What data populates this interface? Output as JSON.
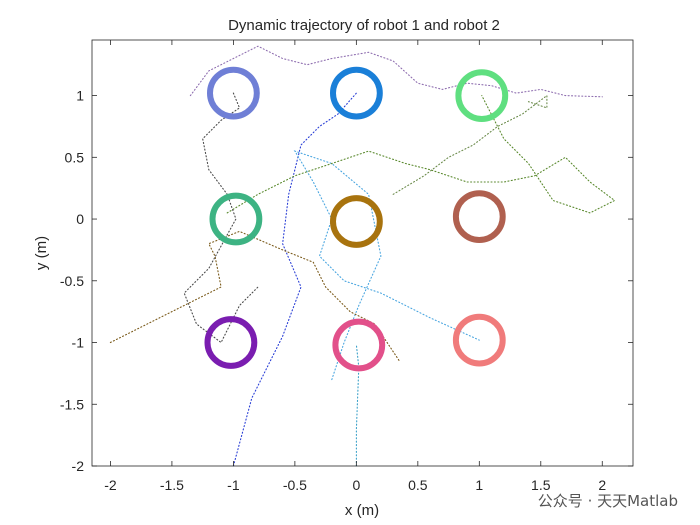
{
  "chart_data": {
    "type": "scatter",
    "title": "Dynamic trajectory of robot 1 and robot 2",
    "xlabel": "x (m)",
    "ylabel": "y (m)",
    "xlim": [
      -2.15,
      2.25
    ],
    "ylim": [
      -2,
      1.45
    ],
    "xticks": [
      -2,
      -1.5,
      -1,
      -0.5,
      0,
      0.5,
      1,
      1.5,
      2
    ],
    "xtick_labels": [
      "-2",
      "-1.5",
      "-1",
      "-0.5",
      "0",
      "0.5",
      "1",
      "1.5",
      "2"
    ],
    "yticks": [
      -2,
      -1.5,
      -1,
      -0.5,
      0,
      0.5,
      1
    ],
    "ytick_labels": [
      "-2",
      "-1.5",
      "-1",
      "-0.5",
      "0",
      "0.5",
      "1"
    ],
    "grid": false,
    "rings": [
      {
        "x": -1.0,
        "y": 1.02,
        "r": 0.19,
        "color": "#6f7fd6"
      },
      {
        "x": 0.0,
        "y": 1.02,
        "r": 0.19,
        "color": "#1a7fd8"
      },
      {
        "x": 1.02,
        "y": 1.0,
        "r": 0.19,
        "color": "#5fdf80"
      },
      {
        "x": -0.98,
        "y": 0.0,
        "r": 0.19,
        "color": "#3db383"
      },
      {
        "x": 0.0,
        "y": -0.02,
        "r": 0.19,
        "color": "#a8730e"
      },
      {
        "x": 1.0,
        "y": 0.02,
        "r": 0.19,
        "color": "#b0604f"
      },
      {
        "x": -1.02,
        "y": -1.0,
        "r": 0.19,
        "color": "#7a1db0"
      },
      {
        "x": 0.02,
        "y": -1.02,
        "r": 0.19,
        "color": "#e2508a"
      },
      {
        "x": 1.0,
        "y": -0.98,
        "r": 0.19,
        "color": "#f07b7b"
      }
    ],
    "trajectories": [
      {
        "color": "#2a3fd6",
        "points": [
          [
            -1.0,
            -2.0
          ],
          [
            -0.85,
            -1.45
          ],
          [
            -0.6,
            -0.95
          ],
          [
            -0.45,
            -0.55
          ],
          [
            -0.6,
            -0.2
          ],
          [
            -0.55,
            0.2
          ],
          [
            -0.45,
            0.6
          ],
          [
            -0.3,
            0.75
          ],
          [
            -0.15,
            0.85
          ],
          [
            0.0,
            1.02
          ]
        ]
      },
      {
        "color": "#3aa0c8",
        "points": [
          [
            0.0,
            -2.0
          ],
          [
            0.0,
            -1.7
          ],
          [
            0.02,
            -1.2
          ],
          [
            0.0,
            -1.02
          ]
        ]
      },
      {
        "color": "#4aa6e0",
        "points": [
          [
            -0.2,
            -1.3
          ],
          [
            -0.1,
            -1.0
          ],
          [
            0.02,
            -0.7
          ],
          [
            0.2,
            -0.3
          ],
          [
            0.1,
            0.2
          ],
          [
            -0.2,
            0.45
          ],
          [
            -0.5,
            0.55
          ],
          [
            -0.35,
            0.3
          ],
          [
            -0.2,
            0.0
          ],
          [
            -0.3,
            -0.3
          ],
          [
            -0.1,
            -0.5
          ],
          [
            0.2,
            -0.6
          ],
          [
            0.6,
            -0.8
          ],
          [
            1.0,
            -0.98
          ]
        ]
      },
      {
        "color": "#5b8a2f",
        "points": [
          [
            -1.05,
            0.05
          ],
          [
            -0.8,
            0.2
          ],
          [
            -0.5,
            0.35
          ],
          [
            -0.2,
            0.45
          ],
          [
            0.1,
            0.55
          ],
          [
            0.4,
            0.45
          ],
          [
            0.6,
            0.4
          ],
          [
            0.9,
            0.3
          ],
          [
            1.2,
            0.3
          ],
          [
            1.45,
            0.35
          ],
          [
            1.7,
            0.5
          ],
          [
            1.9,
            0.3
          ],
          [
            2.1,
            0.15
          ],
          [
            1.9,
            0.05
          ],
          [
            1.6,
            0.15
          ],
          [
            1.4,
            0.45
          ],
          [
            1.2,
            0.65
          ],
          [
            1.02,
            1.0
          ]
        ]
      },
      {
        "color": "#7a5a1a",
        "points": [
          [
            -2.0,
            -1.0
          ],
          [
            -1.6,
            -0.8
          ],
          [
            -1.3,
            -0.65
          ],
          [
            -1.1,
            -0.55
          ],
          [
            -1.15,
            -0.3
          ],
          [
            -1.2,
            -0.2
          ],
          [
            -0.95,
            -0.1
          ],
          [
            -0.6,
            -0.25
          ],
          [
            -0.35,
            -0.35
          ],
          [
            -0.25,
            -0.55
          ],
          [
            -0.05,
            -0.75
          ],
          [
            0.15,
            -0.85
          ],
          [
            0.35,
            -1.15
          ]
        ]
      },
      {
        "color": "#4a4a4a",
        "points": [
          [
            -1.0,
            1.02
          ],
          [
            -0.95,
            0.9
          ],
          [
            -1.1,
            0.8
          ],
          [
            -1.25,
            0.65
          ],
          [
            -1.2,
            0.4
          ],
          [
            -1.05,
            0.2
          ],
          [
            -0.98,
            0.0
          ],
          [
            -1.2,
            -0.4
          ],
          [
            -1.4,
            -0.6
          ],
          [
            -1.3,
            -0.85
          ],
          [
            -1.1,
            -1.0
          ],
          [
            -0.95,
            -0.7
          ],
          [
            -0.8,
            -0.55
          ]
        ]
      },
      {
        "color": "#8f6fb0",
        "points": [
          [
            -1.35,
            1.0
          ],
          [
            -1.2,
            1.2
          ],
          [
            -1.0,
            1.3
          ],
          [
            -0.8,
            1.4
          ],
          [
            -0.6,
            1.3
          ],
          [
            -0.4,
            1.25
          ],
          [
            -0.2,
            1.3
          ],
          [
            0.1,
            1.35
          ],
          [
            0.3,
            1.28
          ],
          [
            0.5,
            1.1
          ],
          [
            0.7,
            1.05
          ],
          [
            0.9,
            1.1
          ],
          [
            1.1,
            1.08
          ],
          [
            1.3,
            1.02
          ],
          [
            1.5,
            1.05
          ],
          [
            1.7,
            1.0
          ],
          [
            2.0,
            0.99
          ]
        ]
      },
      {
        "color": "#6a8a4a",
        "points": [
          [
            0.3,
            0.2
          ],
          [
            0.55,
            0.35
          ],
          [
            0.75,
            0.5
          ],
          [
            0.95,
            0.6
          ],
          [
            1.15,
            0.75
          ],
          [
            1.35,
            0.85
          ],
          [
            1.55,
            1.0
          ],
          [
            1.55,
            0.9
          ],
          [
            1.4,
            0.95
          ]
        ]
      }
    ]
  },
  "watermark": "公众号 · 天天Matlab"
}
